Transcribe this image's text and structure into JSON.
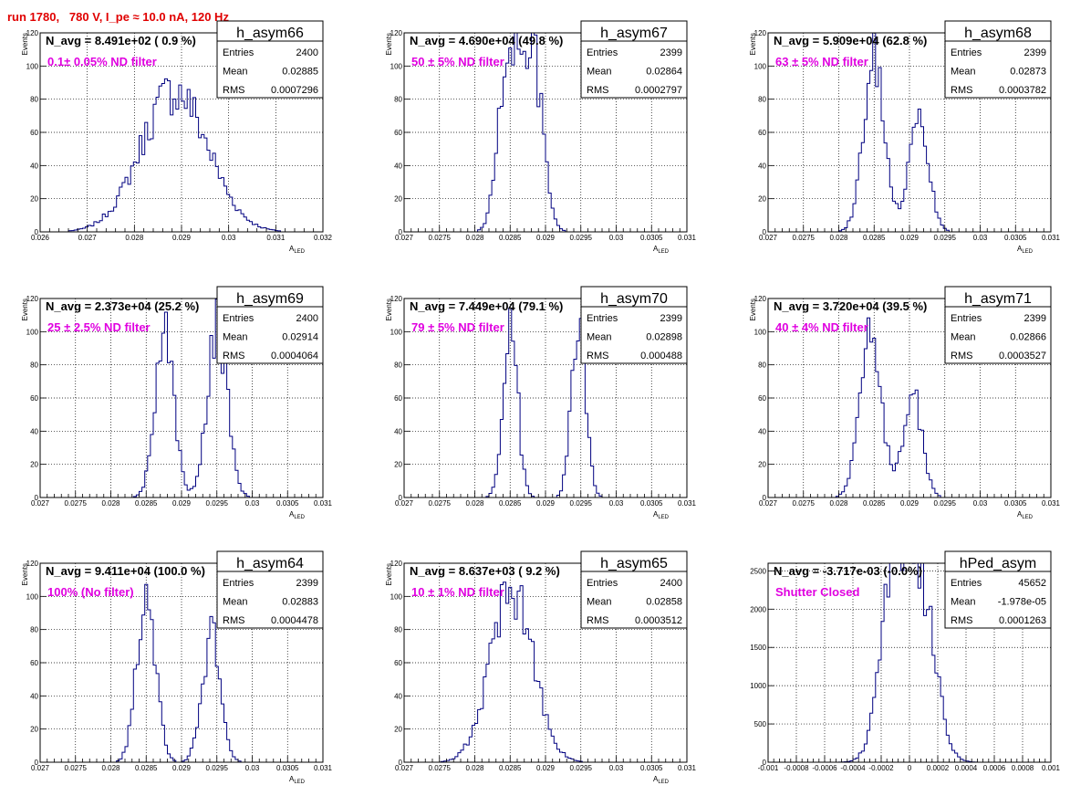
{
  "canvas_title": "run 1780,   780 V, I_pe ≈ 10.0 nA, 120 Hz",
  "colors": {
    "title": "#e00000",
    "annotation": "#e000e0",
    "histogram": "#000080",
    "grid": "#000000"
  },
  "chart_data": [
    {
      "type": "histogram",
      "name": "h_asym66",
      "navg": "N_avg = 8.491e+02 ( 0.9 %)",
      "annotation": "0.1± 0.05% ND filter",
      "stats": [
        [
          "Entries",
          "2400"
        ],
        [
          "Mean",
          "0.02885"
        ],
        [
          "RMS",
          "0.0007296"
        ]
      ],
      "ylabel": "Events",
      "xlabel": "A_LED",
      "xlim": [
        0.026,
        0.032
      ],
      "ylim": [
        0,
        120
      ],
      "xticks": [
        "0.026",
        "0.027",
        "0.028",
        "0.029",
        "0.03",
        "0.031",
        "0.032"
      ],
      "yticks": [
        "0",
        "20",
        "40",
        "60",
        "80",
        "100",
        "120"
      ],
      "grid": true,
      "mean": 0.02885,
      "rms": 0.0007296,
      "peaks": [
        [
          0.02885,
          85,
          0.00071
        ]
      ]
    },
    {
      "type": "histogram",
      "name": "h_asym67",
      "navg": "N_avg = 4.690e+04 (49.8 %)",
      "annotation": "50 ± 5% ND filter",
      "stats": [
        [
          "Entries",
          "2399"
        ],
        [
          "Mean",
          "0.02864"
        ],
        [
          "RMS",
          "0.0002797"
        ]
      ],
      "ylabel": "Events",
      "xlabel": "A_LED",
      "xlim": [
        0.027,
        0.031
      ],
      "ylim": [
        0,
        120
      ],
      "xticks": [
        "0.027",
        "0.0275",
        "0.028",
        "0.0285",
        "0.029",
        "0.0295",
        "0.03",
        "0.0305",
        "0.031"
      ],
      "yticks": [
        "0",
        "20",
        "40",
        "60",
        "80",
        "100",
        "120"
      ],
      "grid": true,
      "mean": 0.02864,
      "rms": 0.0002797,
      "peaks": [
        [
          0.02848,
          108,
          0.00014
        ],
        [
          0.02882,
          104,
          0.00014
        ]
      ]
    },
    {
      "type": "histogram",
      "name": "h_asym68",
      "navg": "N_avg = 5.909e+04 (62.8 %)",
      "annotation": "63 ± 5% ND filter",
      "stats": [
        [
          "Entries",
          "2399"
        ],
        [
          "Mean",
          "0.02873"
        ],
        [
          "RMS",
          "0.0003782"
        ]
      ],
      "ylabel": "Events",
      "xlabel": "A_LED",
      "xlim": [
        0.027,
        0.031
      ],
      "ylim": [
        0,
        120
      ],
      "xticks": [
        "0.027",
        "0.0275",
        "0.028",
        "0.0285",
        "0.029",
        "0.0295",
        "0.03",
        "0.0305",
        "0.031"
      ],
      "yticks": [
        "0",
        "20",
        "40",
        "60",
        "80",
        "100",
        "120"
      ],
      "grid": true,
      "mean": 0.02873,
      "rms": 0.0003782,
      "peaks": [
        [
          0.0285,
          105,
          0.00015
        ],
        [
          0.02913,
          68,
          0.00014
        ]
      ]
    },
    {
      "type": "histogram",
      "name": "h_asym69",
      "navg": "N_avg = 2.373e+04 (25.2 %)",
      "annotation": "25 ± 2.5% ND filter",
      "stats": [
        [
          "Entries",
          "2400"
        ],
        [
          "Mean",
          "0.02914"
        ],
        [
          "RMS",
          "0.0004064"
        ]
      ],
      "ylabel": "Events",
      "xlabel": "A_LED",
      "xlim": [
        0.027,
        0.031
      ],
      "ylim": [
        0,
        120
      ],
      "xticks": [
        "0.027",
        "0.0275",
        "0.028",
        "0.0285",
        "0.029",
        "0.0295",
        "0.03",
        "0.0305",
        "0.031"
      ],
      "yticks": [
        "0",
        "20",
        "40",
        "60",
        "80",
        "100",
        "120"
      ],
      "grid": true,
      "mean": 0.02914,
      "rms": 0.0004064,
      "peaks": [
        [
          0.02876,
          105,
          0.00013
        ],
        [
          0.02951,
          103,
          0.00014
        ]
      ]
    },
    {
      "type": "histogram",
      "name": "h_asym70",
      "navg": "N_avg = 7.449e+04 (79.1 %)",
      "annotation": "79 ± 5% ND filter",
      "stats": [
        [
          "Entries",
          "2399"
        ],
        [
          "Mean",
          "0.02898"
        ],
        [
          "RMS",
          "0.000488"
        ]
      ],
      "ylabel": "Events",
      "xlabel": "A_LED",
      "xlim": [
        0.027,
        0.031
      ],
      "ylim": [
        0,
        120
      ],
      "xticks": [
        "0.027",
        "0.0275",
        "0.028",
        "0.0285",
        "0.029",
        "0.0295",
        "0.03",
        "0.0305",
        "0.031"
      ],
      "yticks": [
        "0",
        "20",
        "40",
        "60",
        "80",
        "100",
        "120"
      ],
      "grid": true,
      "mean": 0.02898,
      "rms": 0.000488,
      "peaks": [
        [
          0.0285,
          110,
          0.0001
        ],
        [
          0.02947,
          110,
          0.0001
        ]
      ]
    },
    {
      "type": "histogram",
      "name": "h_asym71",
      "navg": "N_avg = 3.720e+04 (39.5 %)",
      "annotation": "40 ± 4% ND filter",
      "stats": [
        [
          "Entries",
          "2399"
        ],
        [
          "Mean",
          "0.02866"
        ],
        [
          "RMS",
          "0.0003527"
        ]
      ],
      "ylabel": "Events",
      "xlabel": "A_LED",
      "xlim": [
        0.027,
        0.031
      ],
      "ylim": [
        0,
        120
      ],
      "xticks": [
        "0.027",
        "0.0275",
        "0.028",
        "0.0285",
        "0.029",
        "0.0295",
        "0.03",
        "0.0305",
        "0.031"
      ],
      "yticks": [
        "0",
        "20",
        "40",
        "60",
        "80",
        "100",
        "120"
      ],
      "grid": true,
      "mean": 0.02866,
      "rms": 0.0003527,
      "peaks": [
        [
          0.02845,
          105,
          0.00015
        ],
        [
          0.02905,
          62,
          0.00013
        ]
      ]
    },
    {
      "type": "histogram",
      "name": "h_asym64",
      "navg": "N_avg = 9.411e+04 (100.0 %)",
      "annotation": "100% (No filter)",
      "stats": [
        [
          "Entries",
          "2399"
        ],
        [
          "Mean",
          "0.02883"
        ],
        [
          "RMS",
          "0.0004478"
        ]
      ],
      "ylabel": "Events",
      "xlabel": "A_LED",
      "xlim": [
        0.027,
        0.031
      ],
      "ylim": [
        0,
        120
      ],
      "xticks": [
        "0.027",
        "0.0275",
        "0.028",
        "0.0285",
        "0.029",
        "0.0295",
        "0.03",
        "0.0305",
        "0.031"
      ],
      "yticks": [
        "0",
        "20",
        "40",
        "60",
        "80",
        "100",
        "120"
      ],
      "grid": true,
      "mean": 0.02883,
      "rms": 0.0004478,
      "peaks": [
        [
          0.0285,
          108,
          0.00013
        ],
        [
          0.02942,
          75,
          0.00013
        ]
      ]
    },
    {
      "type": "histogram",
      "name": "h_asym65",
      "navg": "N_avg = 8.637e+03 ( 9.2 %)",
      "annotation": "10 ± 1% ND filter",
      "stats": [
        [
          "Entries",
          "2400"
        ],
        [
          "Mean",
          "0.02858"
        ],
        [
          "RMS",
          "0.0003512"
        ]
      ],
      "ylabel": "Events",
      "xlabel": "A_LED",
      "xlim": [
        0.027,
        0.031
      ],
      "ylim": [
        0,
        120
      ],
      "xticks": [
        "0.027",
        "0.0275",
        "0.028",
        "0.0285",
        "0.029",
        "0.0295",
        "0.03",
        "0.0305",
        "0.031"
      ],
      "yticks": [
        "0",
        "20",
        "40",
        "60",
        "80",
        "100",
        "120"
      ],
      "grid": true,
      "mean": 0.02858,
      "rms": 0.0003512,
      "peaks": [
        [
          0.02852,
          104,
          0.0003
        ]
      ]
    },
    {
      "type": "histogram",
      "name": "hPed_asym",
      "navg": "N_avg = -3.717e-03 (-0.0%)",
      "annotation": "Shutter Closed",
      "stats": [
        [
          "Entries",
          "45652"
        ],
        [
          "Mean",
          "-1.978e-05"
        ],
        [
          "RMS",
          "0.0001263"
        ]
      ],
      "ylabel": "",
      "xlabel": "",
      "xlim": [
        -0.001,
        0.001
      ],
      "ylim": [
        0,
        2600
      ],
      "xticks": [
        "-0.001",
        "-0.0008",
        "-0.0006",
        "-0.0004",
        "-0.0002",
        "0",
        "0.0002",
        "0.0004",
        "0.0006",
        "0.0008",
        "0.001"
      ],
      "yticks": [
        "0",
        "500",
        "1000",
        "1500",
        "2000",
        "2500"
      ],
      "grid": true,
      "mean": -1.978e-05,
      "rms": 0.0001263,
      "peaks": [
        [
          -0.0001,
          2450,
          0.0001
        ],
        [
          9e-05,
          2100,
          0.0001
        ]
      ]
    }
  ]
}
